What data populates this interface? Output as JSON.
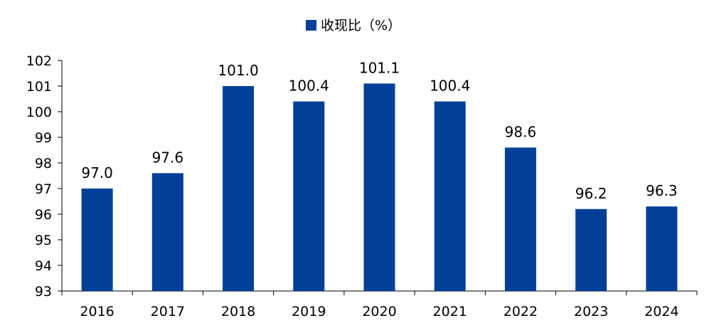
{
  "chart_data": {
    "type": "bar",
    "categories": [
      "2016",
      "2017",
      "2018",
      "2019",
      "2020",
      "2021",
      "2022",
      "2023",
      "2024"
    ],
    "series": [
      {
        "name": "收现比（%）",
        "values": [
          97.0,
          97.6,
          101.0,
          100.4,
          101.1,
          100.4,
          98.6,
          96.2,
          96.3
        ],
        "data_labels": [
          "97.0",
          "97.6",
          "101.0",
          "100.4",
          "101.1",
          "100.4",
          "98.6",
          "96.2",
          "96.3"
        ]
      }
    ],
    "ylim": [
      93,
      102
    ],
    "yticks": [
      93,
      94,
      95,
      96,
      97,
      98,
      99,
      100,
      101,
      102
    ],
    "legend_position": "top-center",
    "grid": false,
    "colors": {
      "bar": "#003f97",
      "axis": "#000000"
    }
  }
}
